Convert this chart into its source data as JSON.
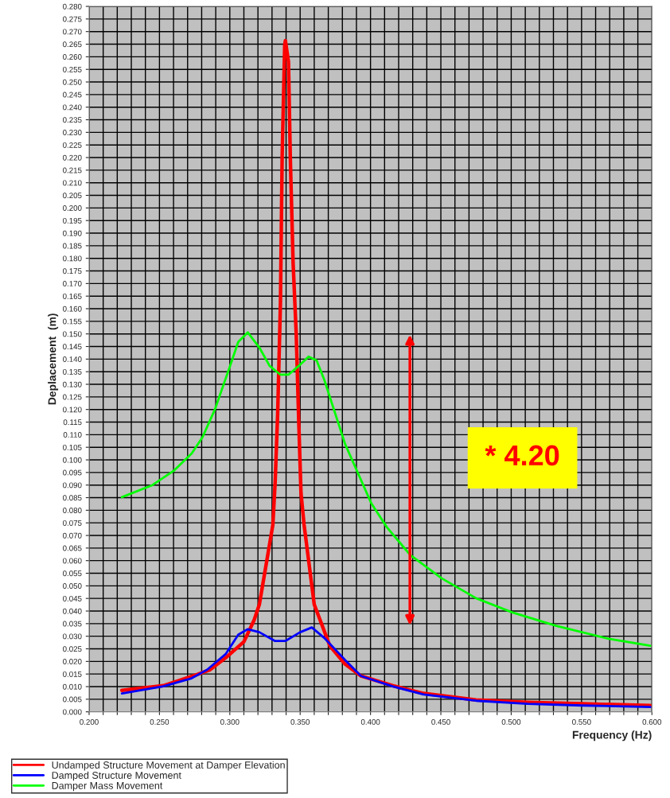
{
  "chart_data": {
    "type": "line",
    "xlabel": "Frequency (Hz)",
    "ylabel": "Deplacement  (m)",
    "xlim": [
      0.2,
      0.6
    ],
    "ylim": [
      0,
      0.28
    ],
    "xticks": [
      {
        "value": 0.2,
        "label": "0.200"
      },
      {
        "value": 0.21,
        "label": null
      },
      {
        "value": 0.22,
        "label": null
      },
      {
        "value": 0.23,
        "label": null
      },
      {
        "value": 0.24,
        "label": null
      },
      {
        "value": 0.25,
        "label": "0.250"
      },
      {
        "value": 0.26,
        "label": null
      },
      {
        "value": 0.27,
        "label": null
      },
      {
        "value": 0.28,
        "label": null
      },
      {
        "value": 0.29,
        "label": null
      },
      {
        "value": 0.3,
        "label": "0.300"
      },
      {
        "value": 0.31,
        "label": null
      },
      {
        "value": 0.32,
        "label": null
      },
      {
        "value": 0.33,
        "label": null
      },
      {
        "value": 0.34,
        "label": null
      },
      {
        "value": 0.35,
        "label": "0.350"
      },
      {
        "value": 0.36,
        "label": null
      },
      {
        "value": 0.37,
        "label": null
      },
      {
        "value": 0.38,
        "label": null
      },
      {
        "value": 0.39,
        "label": null
      },
      {
        "value": 0.4,
        "label": "0.400"
      },
      {
        "value": 0.41,
        "label": null
      },
      {
        "value": 0.42,
        "label": null
      },
      {
        "value": 0.43,
        "label": null
      },
      {
        "value": 0.44,
        "label": null
      },
      {
        "value": 0.45,
        "label": "0.450"
      },
      {
        "value": 0.46,
        "label": null
      },
      {
        "value": 0.47,
        "label": null
      },
      {
        "value": 0.48,
        "label": null
      },
      {
        "value": 0.49,
        "label": null
      },
      {
        "value": 0.5,
        "label": "0.500"
      },
      {
        "value": 0.51,
        "label": null
      },
      {
        "value": 0.52,
        "label": null
      },
      {
        "value": 0.53,
        "label": null
      },
      {
        "value": 0.54,
        "label": null
      },
      {
        "value": 0.55,
        "label": "0.550"
      },
      {
        "value": 0.56,
        "label": null
      },
      {
        "value": 0.57,
        "label": null
      },
      {
        "value": 0.58,
        "label": null
      },
      {
        "value": 0.59,
        "label": null
      },
      {
        "value": 0.6,
        "label": "0.600"
      }
    ],
    "yticks": [
      {
        "value": 0,
        "label": "0.000"
      },
      {
        "value": 0.005,
        "label": "0.005"
      },
      {
        "value": 0.01,
        "label": "0.010"
      },
      {
        "value": 0.015,
        "label": "0.015"
      },
      {
        "value": 0.02,
        "label": "0.020"
      },
      {
        "value": 0.025,
        "label": "0.025"
      },
      {
        "value": 0.03,
        "label": "0.030"
      },
      {
        "value": 0.035,
        "label": "0.035"
      },
      {
        "value": 0.04,
        "label": "0.040"
      },
      {
        "value": 0.045,
        "label": "0.045"
      },
      {
        "value": 0.05,
        "label": "0.050"
      },
      {
        "value": 0.055,
        "label": "0.055"
      },
      {
        "value": 0.06,
        "label": "0.060"
      },
      {
        "value": 0.065,
        "label": "0.065"
      },
      {
        "value": 0.07,
        "label": "0.070"
      },
      {
        "value": 0.075,
        "label": "0.075"
      },
      {
        "value": 0.08,
        "label": "0.080"
      },
      {
        "value": 0.085,
        "label": "0.085"
      },
      {
        "value": 0.09,
        "label": "0.090"
      },
      {
        "value": 0.095,
        "label": "0.095"
      },
      {
        "value": 0.1,
        "label": "0.100"
      },
      {
        "value": 0.105,
        "label": "0.105"
      },
      {
        "value": 0.11,
        "label": "0.110"
      },
      {
        "value": 0.115,
        "label": "0.115"
      },
      {
        "value": 0.12,
        "label": "0.120"
      },
      {
        "value": 0.125,
        "label": "0.125"
      },
      {
        "value": 0.13,
        "label": "0.130"
      },
      {
        "value": 0.135,
        "label": "0.135"
      },
      {
        "value": 0.14,
        "label": "0.140"
      },
      {
        "value": 0.145,
        "label": "0.145"
      },
      {
        "value": 0.15,
        "label": "0.150"
      },
      {
        "value": 0.155,
        "label": "0.155"
      },
      {
        "value": 0.16,
        "label": "0.160"
      },
      {
        "value": 0.165,
        "label": "0.165"
      },
      {
        "value": 0.17,
        "label": "0.170"
      },
      {
        "value": 0.175,
        "label": "0.175"
      },
      {
        "value": 0.18,
        "label": "0.180"
      },
      {
        "value": 0.185,
        "label": "0.185"
      },
      {
        "value": 0.19,
        "label": "0.190"
      },
      {
        "value": 0.195,
        "label": "0.195"
      },
      {
        "value": 0.2,
        "label": "0.200"
      },
      {
        "value": 0.205,
        "label": "0.205"
      },
      {
        "value": 0.21,
        "label": "0.210"
      },
      {
        "value": 0.215,
        "label": "0.215"
      },
      {
        "value": 0.22,
        "label": "0.220"
      },
      {
        "value": 0.225,
        "label": "0.225"
      },
      {
        "value": 0.23,
        "label": "0.230"
      },
      {
        "value": 0.235,
        "label": "0.235"
      },
      {
        "value": 0.24,
        "label": "0.240"
      },
      {
        "value": 0.245,
        "label": "0.245"
      },
      {
        "value": 0.25,
        "label": "0.250"
      },
      {
        "value": 0.255,
        "label": "0.255"
      },
      {
        "value": 0.26,
        "label": "0.260"
      },
      {
        "value": 0.265,
        "label": "0.265"
      },
      {
        "value": 0.27,
        "label": "0.270"
      },
      {
        "value": 0.275,
        "label": "0.275"
      },
      {
        "value": 0.28,
        "label": "0.280"
      }
    ],
    "grid": true,
    "legend": "bottom left",
    "marker": "none",
    "line_style": "solid",
    "series": [
      {
        "name": "Undamped Structure Movement at Damper Elevation",
        "color": "#ff0000",
        "x": [
          0.2233,
          0.2528,
          0.2767,
          0.286,
          0.2972,
          0.31,
          0.3172,
          0.321,
          0.3306,
          0.3322,
          0.334,
          0.336,
          0.3372,
          0.339,
          0.3395,
          0.3417,
          0.343,
          0.345,
          0.3472,
          0.349,
          0.3506,
          0.3528,
          0.36,
          0.3711,
          0.382,
          0.3933,
          0.4156,
          0.4378,
          0.475,
          0.5117,
          0.5506,
          0.5989
        ],
        "values": [
          0.0085,
          0.0104,
          0.0148,
          0.0167,
          0.0215,
          0.0278,
          0.0363,
          0.0426,
          0.0742,
          0.0909,
          0.118,
          0.1626,
          0.2203,
          0.2645,
          0.2664,
          0.258,
          0.22,
          0.178,
          0.15,
          0.115,
          0.0868,
          0.0742,
          0.0426,
          0.0262,
          0.0189,
          0.0142,
          0.0104,
          0.0073,
          0.0047,
          0.0038,
          0.0032,
          0.0025
        ]
      },
      {
        "name": "Damped Structure Movement",
        "color": "#0000ff",
        "x": [
          0.2233,
          0.2528,
          0.2728,
          0.2839,
          0.2972,
          0.306,
          0.3128,
          0.321,
          0.3322,
          0.3394,
          0.35,
          0.3583,
          0.367,
          0.3767,
          0.382,
          0.3933,
          0.4156,
          0.4378,
          0.475,
          0.5117,
          0.5506,
          0.5989
        ],
        "values": [
          0.0073,
          0.0101,
          0.0133,
          0.0167,
          0.023,
          0.0306,
          0.0328,
          0.0316,
          0.0281,
          0.0281,
          0.0316,
          0.0335,
          0.0294,
          0.0237,
          0.0205,
          0.0142,
          0.0101,
          0.0069,
          0.0044,
          0.0032,
          0.0025,
          0.0019
        ]
      },
      {
        "name": "Damper Mass Movement",
        "color": "#00ff00",
        "x": [
          0.2233,
          0.245,
          0.26,
          0.273,
          0.2806,
          0.2894,
          0.3,
          0.306,
          0.3128,
          0.321,
          0.3283,
          0.336,
          0.3417,
          0.349,
          0.356,
          0.3617,
          0.367,
          0.382,
          0.4006,
          0.4117,
          0.4283,
          0.4506,
          0.475,
          0.5006,
          0.532,
          0.5694,
          0.5989
        ],
        "values": [
          0.0852,
          0.09,
          0.0956,
          0.1026,
          0.109,
          0.12,
          0.137,
          0.1468,
          0.1506,
          0.1446,
          0.1373,
          0.1338,
          0.1338,
          0.1373,
          0.141,
          0.1395,
          0.132,
          0.1062,
          0.0827,
          0.0732,
          0.0622,
          0.053,
          0.0451,
          0.0395,
          0.0341,
          0.029,
          0.0262
        ]
      }
    ],
    "annotations": [
      "* 4.20"
    ]
  }
}
